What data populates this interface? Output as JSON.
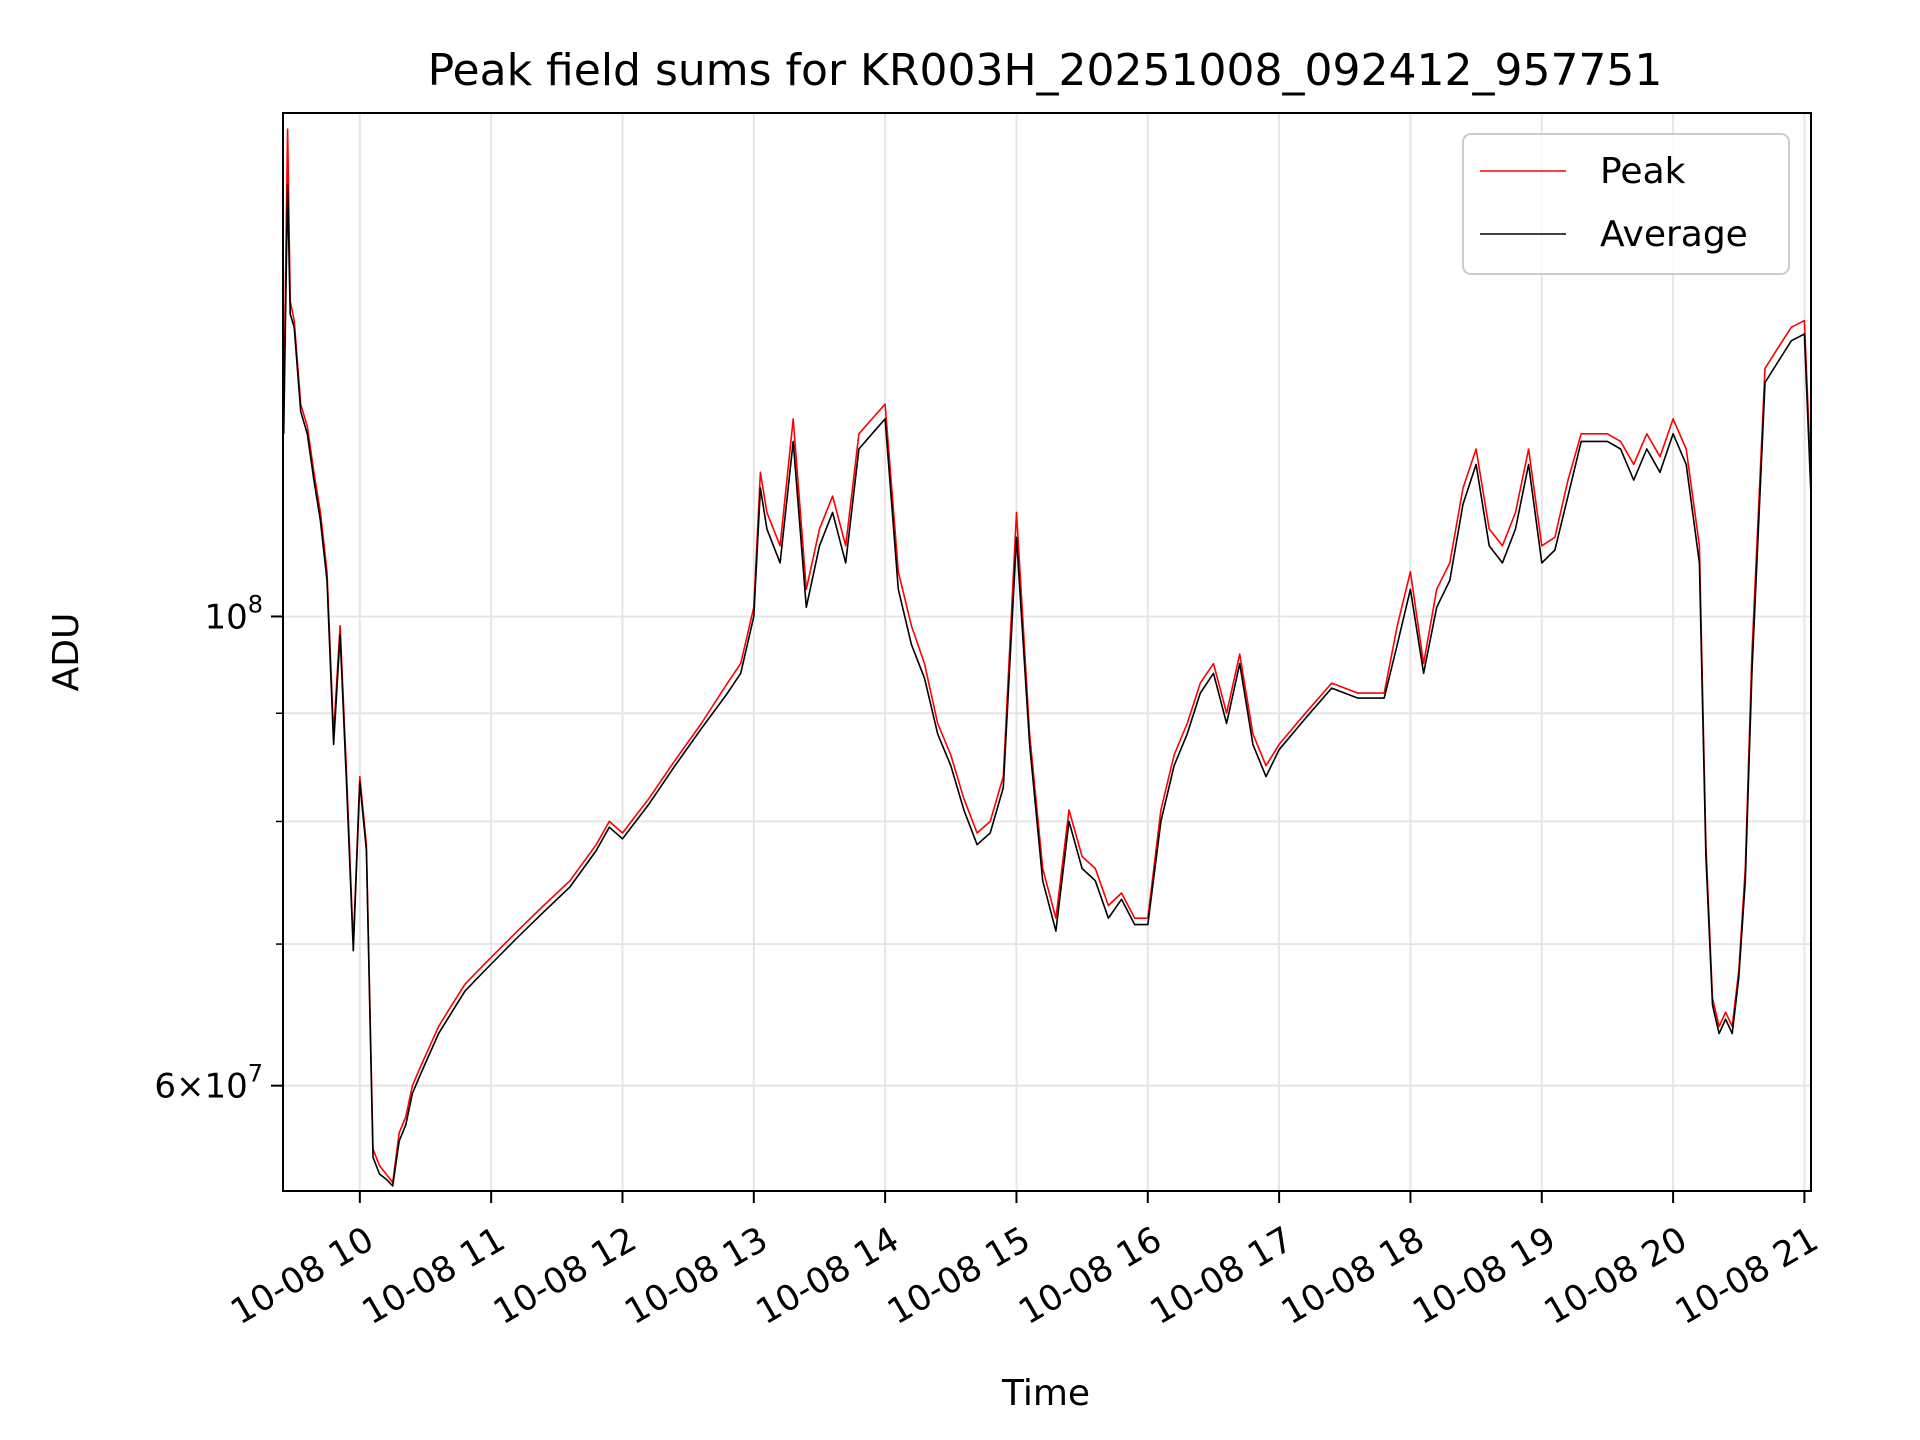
{
  "chart_data": {
    "type": "line",
    "title": "Peak field sums for KR003H_20251008_092412_957751",
    "xlabel": "Time",
    "ylabel": "ADU",
    "yscale": "log",
    "ylim": [
      53500000,
      173000000
    ],
    "xlim": [
      9.415,
      21.05
    ],
    "grid": true,
    "legend_position": "top-right",
    "x_ticks": [
      {
        "value": 10,
        "label": "10-08 10"
      },
      {
        "value": 11,
        "label": "10-08 11"
      },
      {
        "value": 12,
        "label": "10-08 12"
      },
      {
        "value": 13,
        "label": "10-08 13"
      },
      {
        "value": 14,
        "label": "10-08 14"
      },
      {
        "value": 15,
        "label": "10-08 15"
      },
      {
        "value": 16,
        "label": "10-08 16"
      },
      {
        "value": 17,
        "label": "10-08 17"
      },
      {
        "value": 18,
        "label": "10-08 18"
      },
      {
        "value": 19,
        "label": "10-08 19"
      },
      {
        "value": 20,
        "label": "10-08 20"
      },
      {
        "value": 21,
        "label": "10-08 21"
      }
    ],
    "y_major_ticks": [
      {
        "value": 100000000,
        "base": "10",
        "exp": "8",
        "mant": ""
      },
      {
        "value": 60000000,
        "base": "10",
        "exp": "7",
        "mant": "6"
      }
    ],
    "y_minor_ticks": [
      60000000,
      70000000,
      80000000,
      90000000
    ],
    "series": [
      {
        "name": "Peak",
        "color": "#ff0000",
        "x": [
          9.42,
          9.45,
          9.47,
          9.5,
          9.55,
          9.6,
          9.65,
          9.7,
          9.75,
          9.8,
          9.85,
          9.9,
          9.95,
          10.0,
          10.05,
          10.1,
          10.15,
          10.2,
          10.25,
          10.3,
          10.35,
          10.4,
          10.45,
          10.5,
          10.6,
          10.7,
          10.8,
          10.9,
          11.0,
          11.2,
          11.4,
          11.6,
          11.8,
          11.9,
          12.0,
          12.2,
          12.4,
          12.6,
          12.8,
          12.9,
          13.0,
          13.05,
          13.1,
          13.2,
          13.3,
          13.4,
          13.5,
          13.6,
          13.7,
          13.8,
          13.9,
          14.0,
          14.1,
          14.2,
          14.3,
          14.4,
          14.5,
          14.6,
          14.7,
          14.8,
          14.9,
          15.0,
          15.1,
          15.2,
          15.3,
          15.4,
          15.5,
          15.6,
          15.7,
          15.8,
          15.9,
          16.0,
          16.1,
          16.2,
          16.3,
          16.4,
          16.5,
          16.6,
          16.7,
          16.8,
          16.9,
          17.0,
          17.2,
          17.4,
          17.6,
          17.8,
          17.9,
          18.0,
          18.1,
          18.2,
          18.3,
          18.4,
          18.5,
          18.6,
          18.7,
          18.8,
          18.9,
          19.0,
          19.1,
          19.2,
          19.3,
          19.4,
          19.5,
          19.6,
          19.7,
          19.8,
          19.9,
          20.0,
          20.1,
          20.2,
          20.25,
          20.3,
          20.35,
          20.4,
          20.45,
          20.5,
          20.55,
          20.6,
          20.7,
          20.8,
          20.9,
          21.0,
          21.05
        ],
        "values": [
          125000000,
          170000000,
          141000000,
          138000000,
          126000000,
          123000000,
          117000000,
          112000000,
          105000000,
          88000000,
          99000000,
          84000000,
          70000000,
          84000000,
          78000000,
          56000000,
          55000000,
          54500000,
          54000000,
          57000000,
          58000000,
          60000000,
          61000000,
          62000000,
          64000000,
          65500000,
          67000000,
          68000000,
          69000000,
          71000000,
          73000000,
          75000000,
          78000000,
          80000000,
          79000000,
          82000000,
          85500000,
          89000000,
          93000000,
          95000000,
          101000000,
          117000000,
          112000000,
          108000000,
          124000000,
          103000000,
          110000000,
          114000000,
          108000000,
          122000000,
          124000000,
          126000000,
          105000000,
          99000000,
          95000000,
          89000000,
          86000000,
          82000000,
          79000000,
          80000000,
          84000000,
          112000000,
          88000000,
          76000000,
          72000000,
          81000000,
          77000000,
          76000000,
          73000000,
          74000000,
          72000000,
          72000000,
          81000000,
          86000000,
          89000000,
          93000000,
          95000000,
          90000000,
          96000000,
          88000000,
          85000000,
          87000000,
          90000000,
          93000000,
          92000000,
          92000000,
          99000000,
          105000000,
          95000000,
          103000000,
          106000000,
          115000000,
          120000000,
          110000000,
          108000000,
          112000000,
          120000000,
          108000000,
          109000000,
          116000000,
          122000000,
          122000000,
          122000000,
          121000000,
          118000000,
          122000000,
          119000000,
          124000000,
          120000000,
          108000000,
          78000000,
          66000000,
          64000000,
          65000000,
          64000000,
          68000000,
          76000000,
          96000000,
          131000000,
          134000000,
          137000000,
          138000000,
          116000000
        ]
      },
      {
        "name": "Average",
        "color": "#000000",
        "x": [
          9.42,
          9.45,
          9.47,
          9.5,
          9.55,
          9.6,
          9.65,
          9.7,
          9.75,
          9.8,
          9.85,
          9.9,
          9.95,
          10.0,
          10.05,
          10.1,
          10.15,
          10.2,
          10.25,
          10.3,
          10.35,
          10.4,
          10.45,
          10.5,
          10.6,
          10.7,
          10.8,
          10.9,
          11.0,
          11.2,
          11.4,
          11.6,
          11.8,
          11.9,
          12.0,
          12.2,
          12.4,
          12.6,
          12.8,
          12.9,
          13.0,
          13.05,
          13.1,
          13.2,
          13.3,
          13.4,
          13.5,
          13.6,
          13.7,
          13.8,
          13.9,
          14.0,
          14.1,
          14.2,
          14.3,
          14.4,
          14.5,
          14.6,
          14.7,
          14.8,
          14.9,
          15.0,
          15.1,
          15.2,
          15.3,
          15.4,
          15.5,
          15.6,
          15.7,
          15.8,
          15.9,
          16.0,
          16.1,
          16.2,
          16.3,
          16.4,
          16.5,
          16.6,
          16.7,
          16.8,
          16.9,
          17.0,
          17.2,
          17.4,
          17.6,
          17.8,
          17.9,
          18.0,
          18.1,
          18.2,
          18.3,
          18.4,
          18.5,
          18.6,
          18.7,
          18.8,
          18.9,
          19.0,
          19.1,
          19.2,
          19.3,
          19.4,
          19.5,
          19.6,
          19.7,
          19.8,
          19.9,
          20.0,
          20.1,
          20.2,
          20.25,
          20.3,
          20.35,
          20.4,
          20.45,
          20.5,
          20.55,
          20.6,
          20.7,
          20.8,
          20.9,
          21.0,
          21.05
        ],
        "values": [
          122000000,
          160000000,
          139000000,
          137000000,
          125000000,
          122000000,
          116000000,
          111000000,
          104000000,
          87000000,
          98000000,
          83000000,
          69500000,
          83500000,
          77500000,
          55500000,
          54500000,
          54200000,
          53800000,
          56500000,
          57500000,
          59500000,
          60500000,
          61500000,
          63500000,
          65000000,
          66500000,
          67500000,
          68500000,
          70500000,
          72500000,
          74500000,
          77500000,
          79500000,
          78500000,
          81500000,
          85000000,
          88500000,
          92000000,
          94000000,
          100000000,
          115000000,
          110000000,
          106000000,
          121000000,
          101000000,
          108000000,
          112000000,
          106000000,
          120000000,
          122000000,
          124000000,
          103000000,
          97000000,
          93500000,
          88000000,
          85000000,
          81000000,
          78000000,
          79000000,
          83000000,
          109000000,
          87000000,
          75000000,
          71000000,
          80000000,
          76000000,
          75000000,
          72000000,
          73500000,
          71500000,
          71500000,
          80000000,
          85000000,
          88000000,
          92000000,
          94000000,
          89000000,
          95000000,
          87000000,
          84000000,
          86500000,
          89500000,
          92500000,
          91500000,
          91500000,
          97000000,
          103000000,
          94000000,
          101000000,
          104000000,
          113000000,
          118000000,
          108000000,
          106000000,
          110000000,
          118000000,
          106000000,
          107500000,
          114000000,
          121000000,
          121000000,
          121000000,
          120000000,
          116000000,
          120000000,
          117000000,
          122000000,
          118000000,
          106000000,
          77000000,
          65500000,
          63500000,
          64500000,
          63500000,
          67500000,
          75000000,
          94000000,
          129000000,
          132000000,
          135000000,
          136000000,
          114000000
        ]
      }
    ]
  }
}
